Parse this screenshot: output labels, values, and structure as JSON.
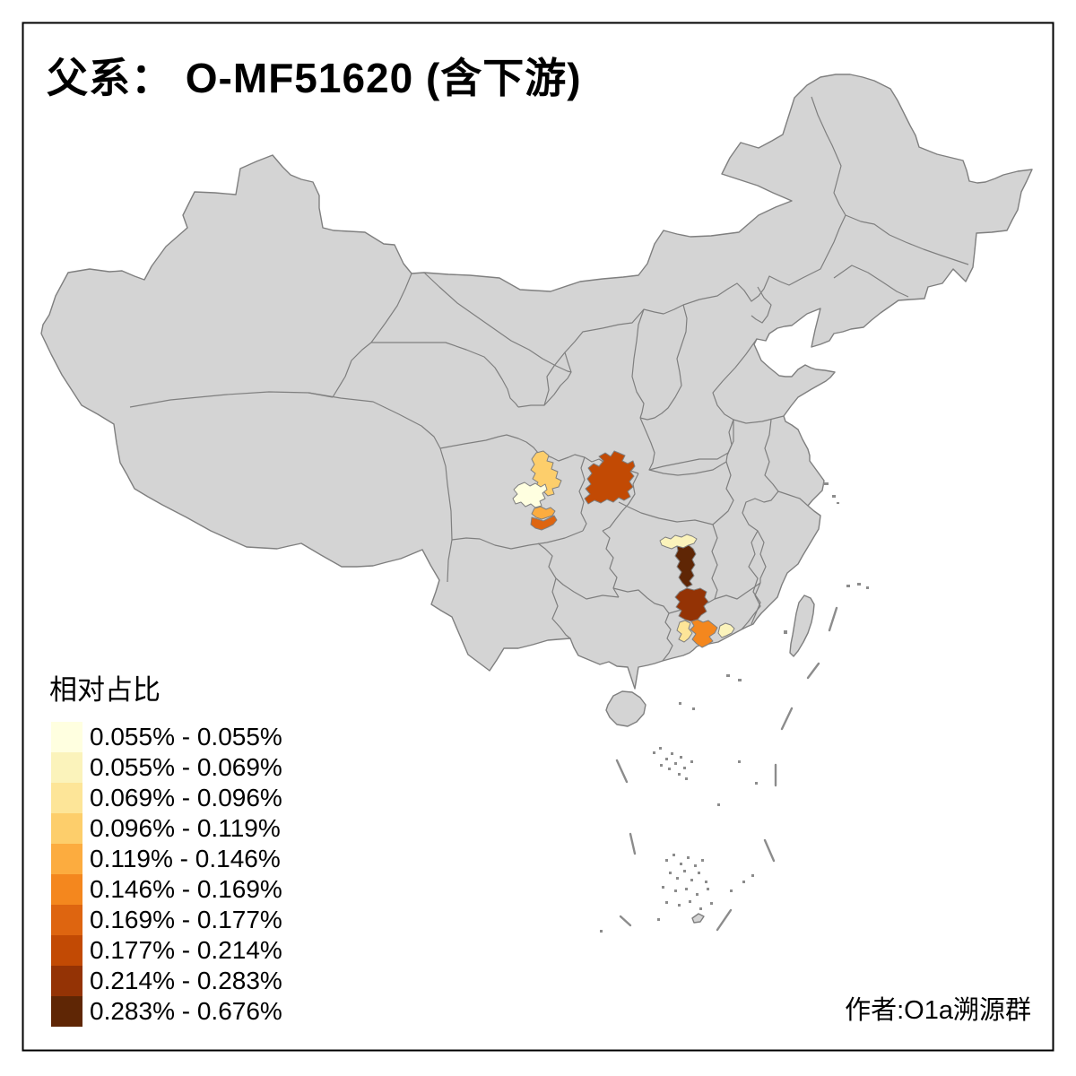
{
  "title": "父系：  O-MF51620 (含下游)",
  "watermark": "作者:O1a溯源群",
  "legend": {
    "title": "相对占比",
    "items": [
      {
        "label": "0.055% - 0.055%",
        "color": "#FFFFE0"
      },
      {
        "label": "0.055% - 0.069%",
        "color": "#FBF3BB"
      },
      {
        "label": "0.069% - 0.096%",
        "color": "#FDE598"
      },
      {
        "label": "0.096% - 0.119%",
        "color": "#FDCE6B"
      },
      {
        "label": "0.119% - 0.146%",
        "color": "#FCAC3F"
      },
      {
        "label": "0.146% - 0.169%",
        "color": "#F4871E"
      },
      {
        "label": "0.169% - 0.177%",
        "color": "#DE6510"
      },
      {
        "label": "0.177% - 0.214%",
        "color": "#C24A04"
      },
      {
        "label": "0.214% - 0.283%",
        "color": "#943305"
      },
      {
        "label": "0.283% - 0.676%",
        "color": "#5F2605"
      }
    ]
  },
  "map": {
    "background": "#FFFFFF",
    "land_fill": "#D4D4D4",
    "border_color": "#7F7F7F",
    "frame_color": "#000000",
    "regions": [
      {
        "id": "sichuan-north",
        "class_index": 3,
        "range": "0.096% - 0.119%"
      },
      {
        "id": "chengdu-area",
        "class_index": 0,
        "range": "0.055% - 0.055%"
      },
      {
        "id": "sichuan-small-upper",
        "class_index": 4,
        "range": "0.119% - 0.146%"
      },
      {
        "id": "sichuan-small-lower",
        "class_index": 6,
        "range": "0.169% - 0.177%"
      },
      {
        "id": "chongqing",
        "class_index": 7,
        "range": "0.177% - 0.214%"
      },
      {
        "id": "hunan-north-band",
        "class_index": 1,
        "range": "0.055% - 0.069%"
      },
      {
        "id": "hunan-central",
        "class_index": 9,
        "range": "0.283% - 0.676%"
      },
      {
        "id": "guangdong-north",
        "class_index": 8,
        "range": "0.214% - 0.283%"
      },
      {
        "id": "guangdong-west",
        "class_index": 2,
        "range": "0.069% - 0.096%"
      },
      {
        "id": "guangdong-central",
        "class_index": 5,
        "range": "0.146% - 0.169%"
      },
      {
        "id": "guangdong-east",
        "class_index": 1,
        "range": "0.055% - 0.069%"
      }
    ]
  }
}
